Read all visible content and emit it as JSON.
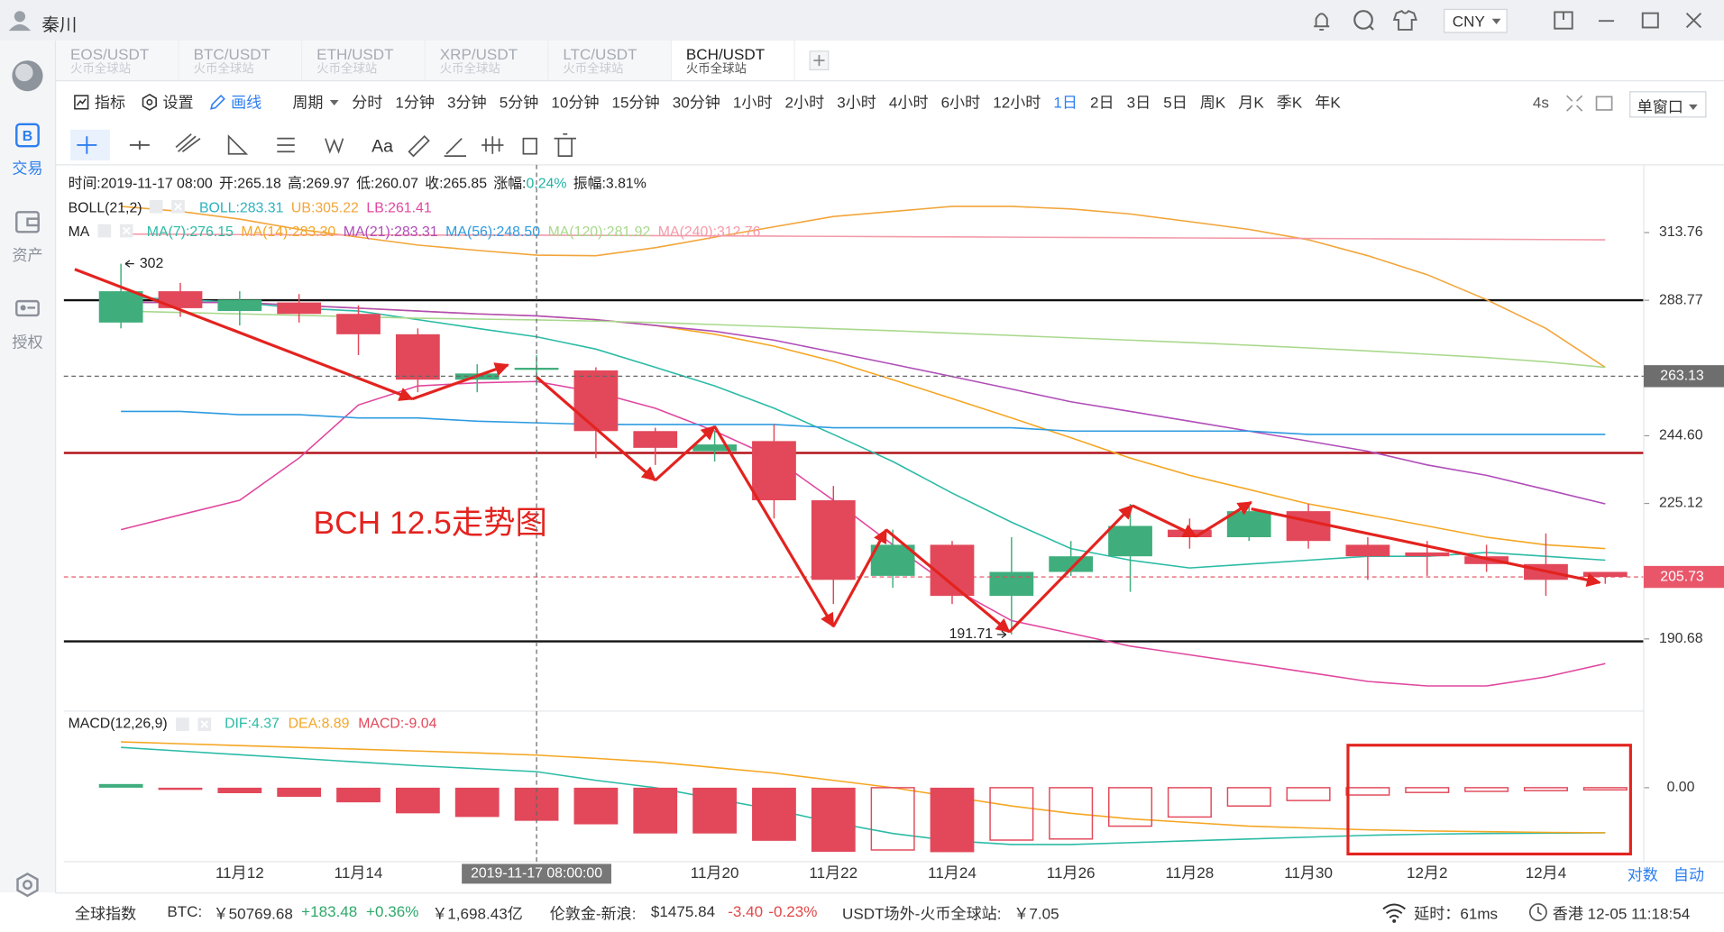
{
  "window": {
    "title": "秦川",
    "currency": "CNY"
  },
  "sidebar": [
    "交易",
    "资产",
    "授权"
  ],
  "tabs": [
    {
      "pair": "EOS/USDT",
      "exchange": "火币全球站"
    },
    {
      "pair": "BTC/USDT",
      "exchange": "火币全球站"
    },
    {
      "pair": "ETH/USDT",
      "exchange": "火币全球站"
    },
    {
      "pair": "XRP/USDT",
      "exchange": "火币全球站"
    },
    {
      "pair": "LTC/USDT",
      "exchange": "火币全球站"
    },
    {
      "pair": "BCH/USDT",
      "exchange": "火币全球站"
    }
  ],
  "active_tab": 5,
  "toolbar": {
    "items": [
      "指标",
      "设置",
      "画线"
    ],
    "period_label": "周期",
    "periods": [
      "分时",
      "1分钟",
      "3分钟",
      "5分钟",
      "10分钟",
      "15分钟",
      "30分钟",
      "1小时",
      "2小时",
      "3小时",
      "4小时",
      "6小时",
      "12小时",
      "1日",
      "2日",
      "3日",
      "5日",
      "周K",
      "月K",
      "季K",
      "年K"
    ],
    "active_period": 13,
    "refresh": "4s",
    "window_mode": "单窗口",
    "text_tool": "Aa"
  },
  "chart": {
    "info": [
      {
        "label": "时间:",
        "value": "2019-11-17 08:00"
      },
      {
        "label": "开:",
        "value": "265.18"
      },
      {
        "label": "高:",
        "value": "269.97"
      },
      {
        "label": "低:",
        "value": "260.07"
      },
      {
        "label": "收:",
        "value": "265.85"
      },
      {
        "label": "涨幅:",
        "value": "0.24%",
        "color": "#21b3a6"
      },
      {
        "label": "振幅:",
        "value": "3.81%"
      }
    ],
    "boll": {
      "name": "BOLL(21,2)",
      "items": [
        {
          "label": "BOLL:",
          "value": "283.31",
          "color": "#2bb3c0"
        },
        {
          "label": "UB:",
          "value": "305.22",
          "color": "#f2a53a",
          "values": [
            324,
            322,
            319,
            315,
            312,
            309,
            307,
            305.22,
            305,
            308,
            312,
            316,
            320,
            322,
            324,
            324,
            323,
            321,
            318,
            315,
            311,
            305,
            298,
            289,
            279,
            266
          ]
        },
        {
          "label": "LB:",
          "value": "261.41",
          "color": "#e0479e",
          "values": [
            218,
            222,
            226,
            238,
            254,
            260,
            261,
            261.41,
            258,
            253,
            246,
            238,
            226,
            214,
            203,
            195,
            192,
            189,
            187,
            185,
            183,
            181,
            180,
            180,
            182,
            185
          ]
        }
      ]
    },
    "ma": {
      "name": "MA",
      "items": [
        {
          "label": "MA(7):",
          "value": "276.15",
          "color": "#2bbba6",
          "values": [
            290,
            289,
            288,
            286,
            285,
            282,
            279,
            276.15,
            272,
            266,
            260,
            253,
            245,
            237,
            228,
            220,
            213,
            210,
            208,
            209,
            210,
            211,
            211,
            212,
            211,
            210
          ]
        },
        {
          "label": "MA(14):",
          "value": "283.30",
          "color": "#f5a623",
          "values": [
            288,
            288,
            288,
            287,
            286,
            285,
            284,
            283.3,
            282,
            280,
            277,
            273,
            268,
            262,
            256,
            250,
            244,
            238,
            233,
            229,
            225,
            222,
            219,
            216,
            214,
            213
          ]
        },
        {
          "label": "MA(21):",
          "value": "283.31",
          "color": "#b04db8",
          "values": [
            288,
            288,
            288,
            287,
            286,
            285,
            284,
            283.31,
            282,
            280,
            278,
            275,
            271,
            267,
            263,
            259,
            255,
            252,
            249,
            246,
            243,
            240,
            236,
            233,
            229,
            225
          ]
        },
        {
          "label": "MA(56):",
          "value": "248.50",
          "color": "#2d9be0",
          "values": [
            252,
            252,
            251,
            251,
            250,
            250,
            249,
            248.5,
            248,
            248,
            248,
            248,
            247,
            247,
            247,
            247,
            246,
            246,
            246,
            246,
            245,
            245,
            245,
            245,
            245,
            245
          ]
        },
        {
          "label": "MA(120):",
          "value": "281.92",
          "color": "#a9d88c",
          "values": [
            285,
            284.5,
            284,
            283.5,
            283,
            282.5,
            282.2,
            281.92,
            281.5,
            281,
            280.3,
            279.6,
            278.9,
            278.2,
            277.4,
            276.6,
            275.8,
            275,
            274.2,
            273.3,
            272.4,
            271.4,
            270.3,
            269.2,
            267.8,
            266
          ]
        },
        {
          "label": "MA(240):",
          "value": "312.76",
          "color": "#f39aa8",
          "values": [
            313.2,
            313.1,
            313,
            312.9,
            312.9,
            312.8,
            312.8,
            312.76,
            312.7,
            312.6,
            312.5,
            312.4,
            312.3,
            312.2,
            312.1,
            312,
            311.9,
            311.8,
            311.7,
            311.6,
            311.5,
            311.4,
            311.3,
            311.2,
            311.1,
            311
          ]
        }
      ]
    },
    "categories": [
      null,
      null,
      "11月12",
      null,
      "11月14",
      null,
      null,
      null,
      null,
      null,
      "11月20",
      null,
      "11月22",
      null,
      "11月24",
      null,
      "11月26",
      null,
      "11月28",
      null,
      "11月30",
      null,
      "12月2",
      null,
      "12月4",
      null
    ],
    "open": [
      281,
      292,
      285,
      288,
      284,
      277,
      262,
      265.18,
      265,
      246,
      240,
      243,
      226,
      206,
      214,
      201,
      207,
      211,
      218,
      216,
      223,
      214,
      212,
      211,
      209,
      207
    ],
    "high": [
      302,
      295,
      292,
      291,
      287,
      279,
      267,
      269.97,
      266,
      247,
      246,
      248,
      230,
      218,
      215,
      216,
      215,
      225,
      221,
      225,
      225,
      216,
      215,
      214,
      217,
      207
    ],
    "low": [
      279,
      283,
      280,
      281,
      270,
      258,
      258,
      260.07,
      238,
      236,
      237,
      221,
      199,
      203,
      199,
      191.71,
      206,
      202,
      213,
      215,
      213,
      205,
      206,
      207,
      201,
      204
    ],
    "close": [
      292,
      286,
      289,
      284,
      277,
      262,
      264,
      265.85,
      246,
      241,
      242,
      226,
      205,
      214,
      201,
      207,
      211,
      219,
      216,
      223,
      215,
      211,
      211,
      209,
      205,
      205.73
    ],
    "up_color": "#3fae7c",
    "down_color": "#e2485a",
    "high_mark": 0,
    "low_mark": 15,
    "ylim": [
      175,
      340
    ],
    "log_scale": true,
    "yticks": [
      313.76,
      288.77,
      {
        "value": 244.6,
        "label": "244.60"
      },
      225.12,
      190.68
    ],
    "hlines": [
      {
        "value": 288.8,
        "color": "#111111"
      },
      {
        "value": 239.5,
        "color": "#b3141c"
      },
      {
        "value": 190.1,
        "color": "#111111"
      }
    ],
    "crosshair": {
      "index": 7,
      "price": 263.13,
      "label": "2019-11-17 08:00:00"
    },
    "last_price": 205.73,
    "annotation": "BCH 12.5走势图",
    "macd": {
      "name": "MACD(12,26,9)",
      "items": [
        {
          "label": "DIF:",
          "value": "4.37",
          "color": "#2bbba6",
          "values": [
            11,
            10,
            9,
            8,
            7,
            6,
            5.2,
            4.37,
            2,
            0,
            -3,
            -6,
            -9.5,
            -12.5,
            -14.5,
            -15.5,
            -15.5,
            -15,
            -14.5,
            -14,
            -13.5,
            -13,
            -12.7,
            -12.5,
            -12.4,
            -12.3
          ]
        },
        {
          "label": "DEA:",
          "value": "8.89",
          "color": "#f5a623",
          "values": [
            12.5,
            12,
            11.5,
            11,
            10.5,
            10,
            9.5,
            8.89,
            8,
            7,
            5.5,
            4,
            2,
            0,
            -2.5,
            -5,
            -7,
            -8.5,
            -9.5,
            -10.5,
            -11,
            -11.5,
            -11.8,
            -12,
            -12.2,
            -12.3
          ]
        },
        {
          "label": "MACD:",
          "value": "-9.04",
          "color": "#e2485a",
          "values": [
            1,
            -0.5,
            -1.5,
            -2.5,
            -4,
            -7,
            -8,
            -9.04,
            -10,
            -12.5,
            -12.5,
            -14.5,
            -17.5,
            -17,
            -17.6,
            -14.3,
            -14,
            -10.5,
            -8,
            -5,
            -3.5,
            -2,
            -1.3,
            -1,
            -0.8,
            -0.6
          ]
        }
      ],
      "ylim": [
        -22,
        20
      ],
      "yticks": [
        {
          "value": 0,
          "label": "0.00"
        }
      ]
    },
    "axis_modes": [
      "对数",
      "自动"
    ]
  },
  "status": [
    {
      "text": "全球指数"
    },
    {
      "text": "BTC:"
    },
    {
      "text": "￥50769.68"
    },
    {
      "text": "+183.48",
      "color": "#2fa86a"
    },
    {
      "text": "+0.36%",
      "color": "#2fa86a"
    },
    {
      "text": "￥1,698.43亿"
    },
    {
      "text": "伦敦金-新浪:"
    },
    {
      "text": "$1475.84"
    },
    {
      "text": "-3.40",
      "color": "#e04848"
    },
    {
      "text": "-0.23%",
      "color": "#e04848"
    },
    {
      "text": "USDT场外-火币全球站:"
    },
    {
      "text": "￥7.05"
    },
    {
      "text": "延时：61ms"
    },
    {
      "text": "香港 12-05 11:18:54"
    }
  ]
}
